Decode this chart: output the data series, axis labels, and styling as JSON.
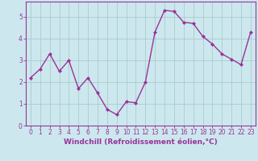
{
  "x": [
    0,
    1,
    2,
    3,
    4,
    5,
    6,
    7,
    8,
    9,
    10,
    11,
    12,
    13,
    14,
    15,
    16,
    17,
    18,
    19,
    20,
    21,
    22,
    23
  ],
  "y": [
    2.2,
    2.6,
    3.3,
    2.5,
    3.0,
    1.7,
    2.2,
    1.5,
    0.75,
    0.5,
    1.1,
    1.05,
    2.0,
    4.3,
    5.3,
    5.25,
    4.75,
    4.7,
    4.1,
    3.75,
    3.3,
    3.05,
    2.8,
    4.3
  ],
  "line_color": "#993399",
  "marker": "D",
  "marker_size": 2.0,
  "bg_color": "#cce8ee",
  "grid_color": "#aacccc",
  "xlabel": "Windchill (Refroidissement éolien,°C)",
  "xlabel_color": "#993399",
  "tick_color": "#993399",
  "xlim": [
    -0.5,
    23.5
  ],
  "ylim": [
    0,
    5.7
  ],
  "yticks": [
    0,
    1,
    2,
    3,
    4,
    5
  ],
  "xticks": [
    0,
    1,
    2,
    3,
    4,
    5,
    6,
    7,
    8,
    9,
    10,
    11,
    12,
    13,
    14,
    15,
    16,
    17,
    18,
    19,
    20,
    21,
    22,
    23
  ],
  "xtick_labels": [
    "0",
    "1",
    "2",
    "3",
    "4",
    "5",
    "6",
    "7",
    "8",
    "9",
    "10",
    "11",
    "12",
    "13",
    "14",
    "15",
    "16",
    "17",
    "18",
    "19",
    "20",
    "21",
    "22",
    "23"
  ],
  "axis_spine_color": "#993399",
  "line_width": 1.0,
  "tick_fontsize": 5.5,
  "xlabel_fontsize": 6.5
}
